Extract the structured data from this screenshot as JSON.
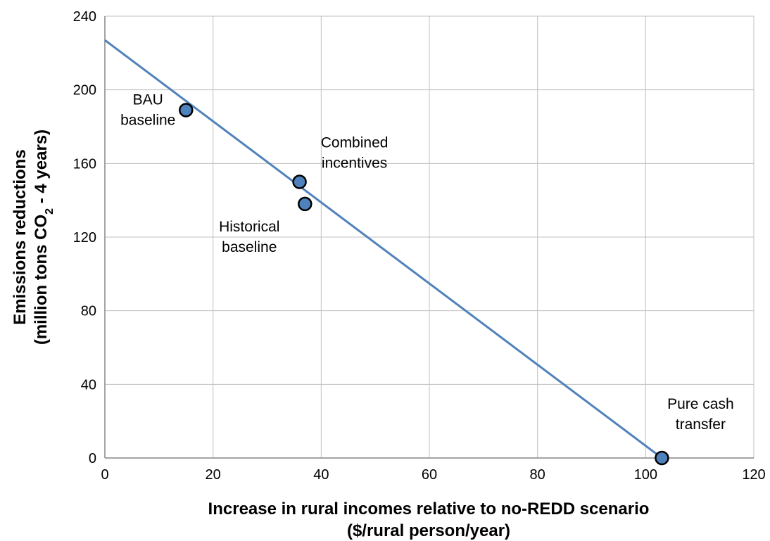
{
  "chart_data": {
    "type": "scatter",
    "title": "",
    "xlabel": [
      "Increase in rural incomes relative to no-REDD scenario",
      "($/rural person/year)"
    ],
    "ylabel": {
      "line1": "Emissions reductions",
      "line2_prefix": "(million tons CO",
      "line2_sub": "2",
      "line2_suffix": " - 4 years)"
    },
    "xlim": [
      0,
      120
    ],
    "ylim": [
      0,
      240
    ],
    "xticks": [
      "0",
      "20",
      "40",
      "60",
      "80",
      "100",
      "120"
    ],
    "yticks": [
      "0",
      "40",
      "80",
      "120",
      "160",
      "200",
      "240"
    ],
    "grid": true,
    "legend": "none",
    "colors": {
      "line": "#4f81bd",
      "marker_fill": "#4f81bd",
      "marker_stroke": "#000000",
      "grid": "#c0c0c0"
    },
    "points": [
      {
        "x": 15,
        "y": 189,
        "label": [
          "BAU",
          "baseline"
        ]
      },
      {
        "x": 36,
        "y": 150,
        "label": [
          "Combined",
          "incentives"
        ]
      },
      {
        "x": 37,
        "y": 138,
        "label": [
          "Historical",
          "baseline"
        ]
      },
      {
        "x": 103,
        "y": 0,
        "label": [
          "Pure cash",
          "transfer"
        ]
      }
    ],
    "trendline": {
      "x": [
        0,
        103
      ],
      "y": [
        227,
        0
      ]
    }
  }
}
